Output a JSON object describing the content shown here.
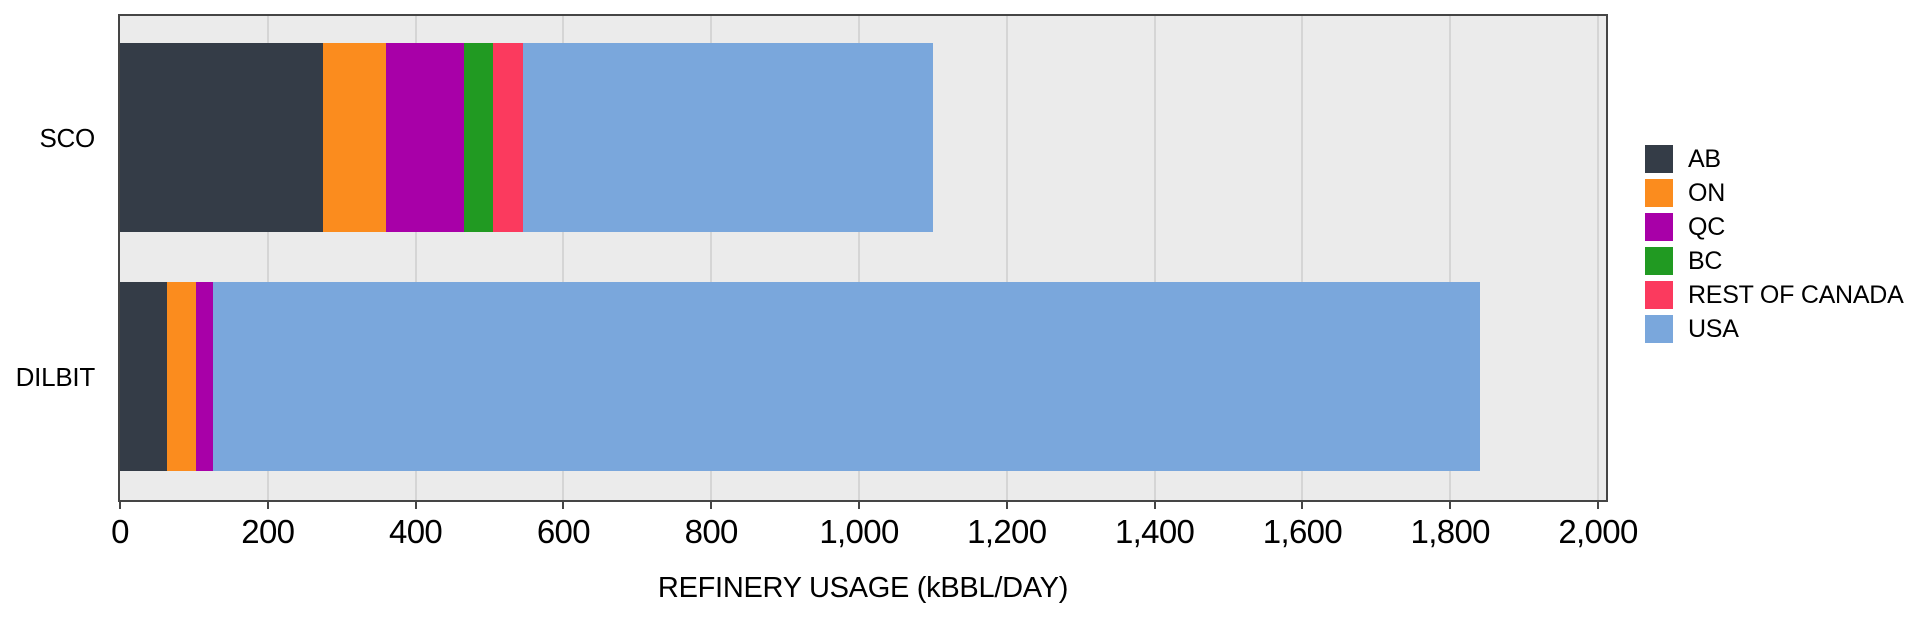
{
  "chart_data": {
    "type": "bar",
    "orientation": "horizontal",
    "stacked": true,
    "title": "",
    "xlabel": "REFINERY USAGE (kBBL/DAY)",
    "ylabel": "",
    "categories": [
      "SCO",
      "DILBIT"
    ],
    "series": [
      {
        "name": "AB",
        "color": "#343C47",
        "values": [
          275,
          63
        ]
      },
      {
        "name": "ON",
        "color": "#FB8C1E",
        "values": [
          85,
          40
        ]
      },
      {
        "name": "QC",
        "color": "#A800A8",
        "values": [
          105,
          23
        ]
      },
      {
        "name": "BC",
        "color": "#219A22",
        "values": [
          40,
          0
        ]
      },
      {
        "name": "REST OF CANADA",
        "color": "#FB3A5E",
        "values": [
          40,
          0
        ]
      },
      {
        "name": "USA",
        "color": "#7AA7DC",
        "values": [
          555,
          1714
        ]
      }
    ],
    "category_totals": [
      1100,
      1840
    ],
    "xlim": [
      0,
      2000
    ],
    "x_ticks": [
      {
        "value": 0,
        "label": "0"
      },
      {
        "value": 200,
        "label": "200"
      },
      {
        "value": 400,
        "label": "400"
      },
      {
        "value": 600,
        "label": "600"
      },
      {
        "value": 800,
        "label": "800"
      },
      {
        "value": 1000,
        "label": "1,000"
      },
      {
        "value": 1200,
        "label": "1,200"
      },
      {
        "value": 1400,
        "label": "1,400"
      },
      {
        "value": 1600,
        "label": "1,600"
      },
      {
        "value": 1800,
        "label": "1,800"
      },
      {
        "value": 2000,
        "label": "2,000"
      }
    ],
    "grid": true,
    "legend_position": "right"
  },
  "styles": {
    "plot_background": "#EBEBEB",
    "gridline_color": "#D5D5D5",
    "axis_border_color": "#454545",
    "text_color": "#000000",
    "page_background": "#FFFFFF"
  }
}
